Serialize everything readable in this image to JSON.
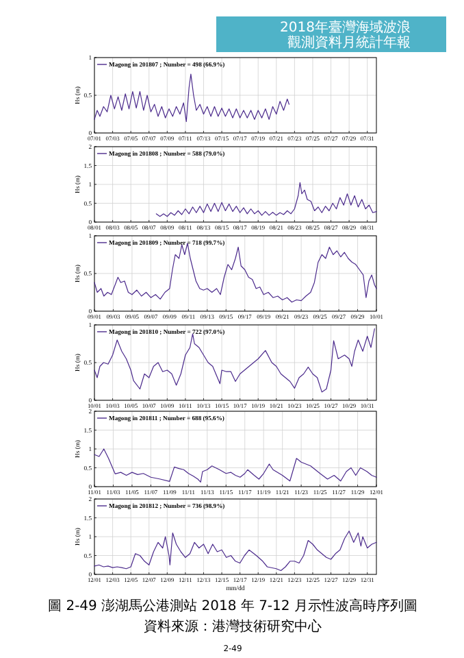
{
  "chart_data": [
    {
      "type": "line",
      "ylabel": "Hs (m)",
      "grid": true,
      "legend": "top left",
      "xlim": [
        "2018-07-01",
        "2018-08-01"
      ],
      "ylim": [
        0,
        1
      ],
      "yticks": [
        0,
        0.5,
        1
      ],
      "xticks": [
        {
          "value": "2018-07-01",
          "label": "07/01"
        },
        {
          "value": "2018-07-03",
          "label": "07/03"
        },
        {
          "value": "2018-07-05",
          "label": "07/05"
        },
        {
          "value": "2018-07-07",
          "label": "07/07"
        },
        {
          "value": "2018-07-09",
          "label": "07/09"
        },
        {
          "value": "2018-07-11",
          "label": "07/11"
        },
        {
          "value": "2018-07-13",
          "label": "07/13"
        },
        {
          "value": "2018-07-15",
          "label": "07/15"
        },
        {
          "value": "2018-07-17",
          "label": "07/17"
        },
        {
          "value": "2018-07-19",
          "label": "07/19"
        },
        {
          "value": "2018-07-21",
          "label": "07/21"
        },
        {
          "value": "2018-07-23",
          "label": "07/23"
        },
        {
          "value": "2018-07-25",
          "label": "07/25"
        },
        {
          "value": "2018-07-27",
          "label": "07/27"
        },
        {
          "value": "2018-07-29",
          "label": "07/29"
        },
        {
          "value": "2018-07-31",
          "label": "07/31"
        }
      ],
      "annotations": [
        "2018年臺灣海域波浪",
        "觀測資料月統計年報"
      ],
      "series": [
        {
          "name": "Magong in 201807 ; Number = 498 (66.9%)",
          "color": "#4b2a8c",
          "x": [
            "2018-07-01T00:00",
            "2018-07-01T07:12",
            "2018-07-01T14:24",
            "2018-07-02T00:00",
            "2018-07-02T09:36",
            "2018-07-02T19:12",
            "2018-07-03T04:48",
            "2018-07-03T14:24",
            "2018-07-04T00:00",
            "2018-07-04T09:36",
            "2018-07-04T19:12",
            "2018-07-05T04:48",
            "2018-07-05T14:24",
            "2018-07-06T00:00",
            "2018-07-06T09:36",
            "2018-07-06T19:12",
            "2018-07-07T04:48",
            "2018-07-07T14:24",
            "2018-07-08T00:00",
            "2018-07-08T09:36",
            "2018-07-08T19:12",
            "2018-07-09T04:48",
            "2018-07-09T14:24",
            "2018-07-10T00:00",
            "2018-07-10T09:36",
            "2018-07-10T19:12",
            "2018-07-11T02:24",
            "2018-07-11T09:36",
            "2018-07-11T14:24",
            "2018-07-11T21:36",
            "2018-07-12T04:48",
            "2018-07-12T14:24",
            "2018-07-13T00:00",
            "2018-07-13T09:36",
            "2018-07-13T19:12",
            "2018-07-14T04:48",
            "2018-07-14T14:24",
            "2018-07-15T00:00",
            "2018-07-15T09:36",
            "2018-07-15T19:12",
            "2018-07-16T04:48",
            "2018-07-16T14:24",
            "2018-07-17T00:00",
            "2018-07-17T09:36",
            "2018-07-17T19:12",
            "2018-07-18T04:48",
            "2018-07-18T14:24",
            "2018-07-19T00:00",
            "2018-07-19T09:36",
            "2018-07-19T19:12",
            "2018-07-20T04:48",
            "2018-07-20T14:24",
            "2018-07-21T00:00",
            "2018-07-21T09:36",
            "2018-07-21T19:12",
            "2018-07-22T04:48",
            "2018-07-22T09:36"
          ],
          "values": [
            0.18,
            0.3,
            0.22,
            0.35,
            0.28,
            0.5,
            0.32,
            0.48,
            0.3,
            0.52,
            0.32,
            0.55,
            0.33,
            0.55,
            0.3,
            0.5,
            0.28,
            0.38,
            0.22,
            0.35,
            0.2,
            0.32,
            0.22,
            0.35,
            0.25,
            0.4,
            0.15,
            0.6,
            0.78,
            0.5,
            0.3,
            0.38,
            0.25,
            0.35,
            0.22,
            0.35,
            0.22,
            0.33,
            0.22,
            0.32,
            0.2,
            0.32,
            0.2,
            0.3,
            0.2,
            0.3,
            0.18,
            0.3,
            0.2,
            0.32,
            0.18,
            0.35,
            0.25,
            0.42,
            0.3,
            0.45,
            0.38
          ]
        }
      ]
    },
    {
      "type": "line",
      "ylabel": "Hs (m)",
      "grid": true,
      "legend": "top left",
      "xlim": [
        "2018-08-01",
        "2018-09-01"
      ],
      "ylim": [
        0,
        2
      ],
      "yticks": [
        0,
        0.5,
        1,
        1.5,
        2
      ],
      "xticks": [
        {
          "value": "2018-08-01",
          "label": "08/01"
        },
        {
          "value": "2018-08-03",
          "label": "08/03"
        },
        {
          "value": "2018-08-05",
          "label": "08/05"
        },
        {
          "value": "2018-08-07",
          "label": "08/07"
        },
        {
          "value": "2018-08-09",
          "label": "08/09"
        },
        {
          "value": "2018-08-11",
          "label": "08/11"
        },
        {
          "value": "2018-08-13",
          "label": "08/13"
        },
        {
          "value": "2018-08-15",
          "label": "08/15"
        },
        {
          "value": "2018-08-17",
          "label": "08/17"
        },
        {
          "value": "2018-08-19",
          "label": "08/19"
        },
        {
          "value": "2018-08-21",
          "label": "08/21"
        },
        {
          "value": "2018-08-23",
          "label": "08/23"
        },
        {
          "value": "2018-08-25",
          "label": "08/25"
        },
        {
          "value": "2018-08-27",
          "label": "08/27"
        },
        {
          "value": "2018-08-29",
          "label": "08/29"
        },
        {
          "value": "2018-08-31",
          "label": "08/31"
        }
      ],
      "series": [
        {
          "name": "Magong in 201808 ; Number = 588 (79.0%)",
          "color": "#4b2a8c",
          "x": [
            "2018-08-07T19:12",
            "2018-08-08T04:48",
            "2018-08-08T14:24",
            "2018-08-09T00:00",
            "2018-08-09T09:36",
            "2018-08-09T19:12",
            "2018-08-10T04:48",
            "2018-08-10T14:24",
            "2018-08-11T00:00",
            "2018-08-11T09:36",
            "2018-08-11T19:12",
            "2018-08-12T04:48",
            "2018-08-12T14:24",
            "2018-08-13T00:00",
            "2018-08-13T09:36",
            "2018-08-13T19:12",
            "2018-08-14T04:48",
            "2018-08-14T14:24",
            "2018-08-15T00:00",
            "2018-08-15T09:36",
            "2018-08-15T19:12",
            "2018-08-16T04:48",
            "2018-08-16T14:24",
            "2018-08-17T00:00",
            "2018-08-17T09:36",
            "2018-08-17T19:12",
            "2018-08-18T04:48",
            "2018-08-18T14:24",
            "2018-08-19T00:00",
            "2018-08-19T09:36",
            "2018-08-19T19:12",
            "2018-08-20T04:48",
            "2018-08-20T14:24",
            "2018-08-21T00:00",
            "2018-08-21T09:36",
            "2018-08-21T19:12",
            "2018-08-22T04:48",
            "2018-08-22T14:24",
            "2018-08-23T00:00",
            "2018-08-23T09:36",
            "2018-08-23T14:24",
            "2018-08-23T19:12",
            "2018-08-24T02:24",
            "2018-08-24T09:36",
            "2018-08-24T19:12",
            "2018-08-25T04:48",
            "2018-08-25T14:24",
            "2018-08-26T00:00",
            "2018-08-26T09:36",
            "2018-08-26T19:12",
            "2018-08-27T04:48",
            "2018-08-27T14:24",
            "2018-08-28T00:00",
            "2018-08-28T09:36",
            "2018-08-28T19:12",
            "2018-08-29T04:48",
            "2018-08-29T14:24",
            "2018-08-30T00:00",
            "2018-08-30T09:36",
            "2018-08-30T19:12",
            "2018-08-31T04:48",
            "2018-08-31T14:24",
            "2018-09-01T00:00"
          ],
          "values": [
            0.22,
            0.15,
            0.22,
            0.15,
            0.25,
            0.18,
            0.3,
            0.2,
            0.35,
            0.22,
            0.4,
            0.25,
            0.42,
            0.25,
            0.48,
            0.28,
            0.5,
            0.28,
            0.52,
            0.3,
            0.48,
            0.28,
            0.42,
            0.25,
            0.38,
            0.22,
            0.35,
            0.22,
            0.3,
            0.18,
            0.28,
            0.18,
            0.26,
            0.18,
            0.25,
            0.2,
            0.3,
            0.22,
            0.35,
            0.7,
            1.05,
            0.75,
            0.85,
            0.6,
            0.55,
            0.3,
            0.4,
            0.25,
            0.42,
            0.3,
            0.5,
            0.35,
            0.65,
            0.45,
            0.75,
            0.45,
            0.7,
            0.4,
            0.6,
            0.35,
            0.45,
            0.25,
            0.28
          ]
        }
      ]
    },
    {
      "type": "line",
      "ylabel": "Hs (m)",
      "grid": true,
      "legend": "top left",
      "xlim": [
        "2018-09-01",
        "2018-10-01"
      ],
      "ylim": [
        0,
        1
      ],
      "yticks": [
        0,
        0.5,
        1
      ],
      "xticks": [
        {
          "value": "2018-09-01",
          "label": "09/01"
        },
        {
          "value": "2018-09-03",
          "label": "09/03"
        },
        {
          "value": "2018-09-05",
          "label": "09/05"
        },
        {
          "value": "2018-09-07",
          "label": "09/07"
        },
        {
          "value": "2018-09-09",
          "label": "09/09"
        },
        {
          "value": "2018-09-11",
          "label": "09/11"
        },
        {
          "value": "2018-09-13",
          "label": "09/13"
        },
        {
          "value": "2018-09-15",
          "label": "09/15"
        },
        {
          "value": "2018-09-17",
          "label": "09/17"
        },
        {
          "value": "2018-09-19",
          "label": "09/19"
        },
        {
          "value": "2018-09-21",
          "label": "09/21"
        },
        {
          "value": "2018-09-23",
          "label": "09/23"
        },
        {
          "value": "2018-09-25",
          "label": "09/25"
        },
        {
          "value": "2018-09-27",
          "label": "09/27"
        },
        {
          "value": "2018-09-29",
          "label": "09/29"
        },
        {
          "value": "2018-10-01",
          "label": "10/01"
        }
      ],
      "series": [
        {
          "name": "Magong in 201809 ; Number = 718 (99.7%)",
          "color": "#4b2a8c",
          "x": [
            "2018-09-01T00:00",
            "2018-09-01T07:12",
            "2018-09-01T16:48",
            "2018-09-02T00:00",
            "2018-09-02T09:36",
            "2018-09-02T19:12",
            "2018-09-03T04:48",
            "2018-09-03T12:00",
            "2018-09-03T19:12",
            "2018-09-04T04:48",
            "2018-09-04T14:24",
            "2018-09-05T00:00",
            "2018-09-05T12:00",
            "2018-09-06T00:00",
            "2018-09-06T12:00",
            "2018-09-07T00:00",
            "2018-09-07T12:00",
            "2018-09-08T00:00",
            "2018-09-08T12:00",
            "2018-09-09T00:00",
            "2018-09-09T07:12",
            "2018-09-09T14:24",
            "2018-09-10T00:00",
            "2018-09-10T07:12",
            "2018-09-10T14:24",
            "2018-09-10T21:36",
            "2018-09-11T04:48",
            "2018-09-11T12:00",
            "2018-09-11T19:12",
            "2018-09-12T04:48",
            "2018-09-12T14:24",
            "2018-09-13T00:00",
            "2018-09-13T12:00",
            "2018-09-14T00:00",
            "2018-09-14T09:36",
            "2018-09-14T19:12",
            "2018-09-15T04:48",
            "2018-09-15T14:24",
            "2018-09-16T00:00",
            "2018-09-16T07:12",
            "2018-09-16T14:24",
            "2018-09-17T00:00",
            "2018-09-17T09:36",
            "2018-09-17T19:12",
            "2018-09-18T04:48",
            "2018-09-18T14:24",
            "2018-09-19T00:00",
            "2018-09-19T12:00",
            "2018-09-20T00:00",
            "2018-09-20T12:00",
            "2018-09-21T00:00",
            "2018-09-21T12:00",
            "2018-09-22T00:00",
            "2018-09-22T12:00",
            "2018-09-23T00:00",
            "2018-09-23T12:00",
            "2018-09-24T00:00",
            "2018-09-24T09:36",
            "2018-09-24T19:12",
            "2018-09-25T04:48",
            "2018-09-25T14:24",
            "2018-09-26T00:00",
            "2018-09-26T09:36",
            "2018-09-26T19:12",
            "2018-09-27T04:48",
            "2018-09-27T14:24",
            "2018-09-28T00:00",
            "2018-09-28T09:36",
            "2018-09-28T19:12",
            "2018-09-29T04:48",
            "2018-09-29T14:24",
            "2018-09-29T21:36",
            "2018-09-30T04:48",
            "2018-09-30T12:00",
            "2018-09-30T19:12",
            "2018-10-01T00:00"
          ],
          "values": [
            0.38,
            0.25,
            0.3,
            0.2,
            0.25,
            0.22,
            0.35,
            0.45,
            0.38,
            0.4,
            0.25,
            0.22,
            0.28,
            0.2,
            0.25,
            0.18,
            0.22,
            0.16,
            0.25,
            0.3,
            0.55,
            0.75,
            0.7,
            0.88,
            0.75,
            0.9,
            0.7,
            0.55,
            0.4,
            0.3,
            0.28,
            0.3,
            0.25,
            0.3,
            0.22,
            0.45,
            0.62,
            0.55,
            0.7,
            0.85,
            0.6,
            0.55,
            0.45,
            0.42,
            0.3,
            0.32,
            0.22,
            0.25,
            0.18,
            0.2,
            0.15,
            0.18,
            0.12,
            0.15,
            0.14,
            0.2,
            0.25,
            0.38,
            0.65,
            0.75,
            0.7,
            0.85,
            0.75,
            0.8,
            0.72,
            0.78,
            0.7,
            0.65,
            0.62,
            0.55,
            0.48,
            0.18,
            0.4,
            0.48,
            0.35,
            0.3
          ]
        }
      ]
    },
    {
      "type": "line",
      "ylabel": "Hs (m)",
      "grid": true,
      "legend": "top left",
      "xlim": [
        "2018-10-01",
        "2018-11-01"
      ],
      "ylim": [
        0,
        1
      ],
      "yticks": [
        0,
        0.5,
        1
      ],
      "xticks": [
        {
          "value": "2018-10-01",
          "label": "10/01"
        },
        {
          "value": "2018-10-03",
          "label": "10/03"
        },
        {
          "value": "2018-10-05",
          "label": "10/05"
        },
        {
          "value": "2018-10-07",
          "label": "10/07"
        },
        {
          "value": "2018-10-09",
          "label": "10/09"
        },
        {
          "value": "2018-10-11",
          "label": "10/11"
        },
        {
          "value": "2018-10-13",
          "label": "10/13"
        },
        {
          "value": "2018-10-15",
          "label": "10/15"
        },
        {
          "value": "2018-10-17",
          "label": "10/17"
        },
        {
          "value": "2018-10-19",
          "label": "10/19"
        },
        {
          "value": "2018-10-21",
          "label": "10/21"
        },
        {
          "value": "2018-10-23",
          "label": "10/23"
        },
        {
          "value": "2018-10-25",
          "label": "10/25"
        },
        {
          "value": "2018-10-27",
          "label": "10/27"
        },
        {
          "value": "2018-10-29",
          "label": "10/29"
        },
        {
          "value": "2018-10-31",
          "label": "10/31"
        }
      ],
      "series": [
        {
          "name": "Magong in 201810 ; Number = 722 (97.0%)",
          "color": "#4b2a8c",
          "x": [
            "2018-10-01T00:00",
            "2018-10-01T07:12",
            "2018-10-01T14:24",
            "2018-10-02T00:00",
            "2018-10-02T12:00",
            "2018-10-03T00:00",
            "2018-10-03T12:00",
            "2018-10-04T00:00",
            "2018-10-04T12:00",
            "2018-10-05T00:00",
            "2018-10-05T07:12",
            "2018-10-06T00:00",
            "2018-10-06T12:00",
            "2018-10-07T00:00",
            "2018-10-07T12:00",
            "2018-10-08T00:00",
            "2018-10-08T12:00",
            "2018-10-09T00:00",
            "2018-10-09T12:00",
            "2018-10-10T00:00",
            "2018-10-10T12:00",
            "2018-10-11T00:00",
            "2018-10-11T12:00",
            "2018-10-11T19:12",
            "2018-10-12T00:00",
            "2018-10-12T12:00",
            "2018-10-13T00:00",
            "2018-10-13T12:00",
            "2018-10-14T00:00",
            "2018-10-14T19:12",
            "2018-10-15T00:00",
            "2018-10-15T12:00",
            "2018-10-16T00:00",
            "2018-10-16T12:00",
            "2018-10-17T00:00",
            "2018-10-17T12:00",
            "2018-10-18T00:00",
            "2018-10-18T12:00",
            "2018-10-19T00:00",
            "2018-10-19T19:12",
            "2018-10-20T12:00",
            "2018-10-21T00:00",
            "2018-10-21T12:00",
            "2018-10-22T00:00",
            "2018-10-22T12:00",
            "2018-10-23T00:00",
            "2018-10-23T12:00",
            "2018-10-24T00:00",
            "2018-10-24T12:00",
            "2018-10-25T00:00",
            "2018-10-25T12:00",
            "2018-10-26T00:00",
            "2018-10-26T12:00",
            "2018-10-27T00:00",
            "2018-10-27T07:12",
            "2018-10-27T19:12",
            "2018-10-28T12:00",
            "2018-10-29T00:00",
            "2018-10-29T07:12",
            "2018-10-29T14:24",
            "2018-10-30T00:00",
            "2018-10-30T12:00",
            "2018-10-31T00:00",
            "2018-10-31T09:36",
            "2018-10-31T19:12"
          ],
          "values": [
            0.4,
            0.3,
            0.45,
            0.5,
            0.48,
            0.6,
            0.8,
            0.65,
            0.55,
            0.4,
            0.26,
            0.15,
            0.35,
            0.3,
            0.45,
            0.5,
            0.38,
            0.4,
            0.35,
            0.2,
            0.35,
            0.6,
            0.7,
            0.88,
            0.75,
            0.7,
            0.6,
            0.5,
            0.45,
            0.22,
            0.4,
            0.38,
            0.38,
            0.25,
            0.35,
            0.4,
            0.45,
            0.5,
            0.55,
            0.66,
            0.5,
            0.45,
            0.35,
            0.3,
            0.25,
            0.16,
            0.3,
            0.35,
            0.44,
            0.35,
            0.3,
            0.11,
            0.15,
            0.4,
            0.79,
            0.55,
            0.6,
            0.55,
            0.45,
            0.65,
            0.8,
            0.65,
            0.85,
            0.7,
            0.95
          ]
        }
      ]
    },
    {
      "type": "line",
      "ylabel": "Hs (m)",
      "grid": true,
      "legend": "top left",
      "xlim": [
        "2018-11-01",
        "2018-12-01"
      ],
      "ylim": [
        0,
        2
      ],
      "yticks": [
        0,
        0.5,
        1,
        1.5,
        2
      ],
      "xticks": [
        {
          "value": "2018-11-01",
          "label": "11/01"
        },
        {
          "value": "2018-11-03",
          "label": "11/03"
        },
        {
          "value": "2018-11-05",
          "label": "11/05"
        },
        {
          "value": "2018-11-07",
          "label": "11/07"
        },
        {
          "value": "2018-11-09",
          "label": "11/09"
        },
        {
          "value": "2018-11-11",
          "label": "11/11"
        },
        {
          "value": "2018-11-13",
          "label": "11/13"
        },
        {
          "value": "2018-11-15",
          "label": "11/15"
        },
        {
          "value": "2018-11-17",
          "label": "11/17"
        },
        {
          "value": "2018-11-19",
          "label": "11/19"
        },
        {
          "value": "2018-11-21",
          "label": "11/21"
        },
        {
          "value": "2018-11-23",
          "label": "11/23"
        },
        {
          "value": "2018-11-25",
          "label": "11/25"
        },
        {
          "value": "2018-11-27",
          "label": "11/27"
        },
        {
          "value": "2018-11-29",
          "label": "11/29"
        },
        {
          "value": "2018-12-01",
          "label": "12/01"
        }
      ],
      "series": [
        {
          "name": "Magong in 201811 ; Number = 688 (95.6%)",
          "color": "#4b2a8c",
          "x": [
            "2018-11-01T00:00",
            "2018-11-01T12:00",
            "2018-11-02T00:00",
            "2018-11-02T12:00",
            "2018-11-03T04:48",
            "2018-11-03T19:12",
            "2018-11-04T09:36",
            "2018-11-05T00:00",
            "2018-11-05T14:24",
            "2018-11-06T04:48",
            "2018-11-07T00:00",
            "2018-11-08T00:00",
            "2018-11-09T00:00",
            "2018-11-09T12:00",
            "2018-11-10T00:00",
            "2018-11-10T12:00",
            "2018-11-11T00:00",
            "2018-11-11T12:00",
            "2018-11-12T00:00",
            "2018-11-12T07:12",
            "2018-11-12T12:00",
            "2018-11-13T00:00",
            "2018-11-13T12:00",
            "2018-11-14T07:12",
            "2018-11-15T00:00",
            "2018-11-15T12:00",
            "2018-11-16T00:00",
            "2018-11-16T12:00",
            "2018-11-17T00:00",
            "2018-11-17T07:12",
            "2018-11-18T00:00",
            "2018-11-18T12:00",
            "2018-11-19T00:00",
            "2018-11-19T14:24",
            "2018-11-20T00:00",
            "2018-11-21T00:00",
            "2018-11-21T19:12",
            "2018-11-22T12:00",
            "2018-11-23T00:00",
            "2018-11-24T00:00",
            "2018-11-25T00:00",
            "2018-11-25T19:12",
            "2018-11-26T12:00",
            "2018-11-27T04:48",
            "2018-11-27T19:12",
            "2018-11-28T07:12",
            "2018-11-28T19:12",
            "2018-11-29T07:12",
            "2018-11-30T00:00",
            "2018-11-30T12:00",
            "2018-12-01T00:00"
          ],
          "values": [
            0.85,
            0.8,
            1.0,
            0.75,
            0.34,
            0.38,
            0.3,
            0.38,
            0.32,
            0.35,
            0.25,
            0.2,
            0.14,
            0.52,
            0.48,
            0.45,
            0.35,
            0.28,
            0.2,
            0.12,
            0.4,
            0.45,
            0.55,
            0.45,
            0.35,
            0.38,
            0.3,
            0.25,
            0.35,
            0.45,
            0.3,
            0.2,
            0.35,
            0.6,
            0.45,
            0.3,
            0.15,
            0.75,
            0.65,
            0.55,
            0.35,
            0.2,
            0.3,
            0.15,
            0.4,
            0.5,
            0.3,
            0.5,
            0.4,
            0.3,
            0.25
          ]
        }
      ]
    },
    {
      "type": "line",
      "ylabel": "Hs (m)",
      "xlabel": "mm/dd",
      "grid": true,
      "legend": "top left",
      "xlim": [
        "2018-12-01",
        "2019-01-01"
      ],
      "ylim": [
        0,
        2
      ],
      "yticks": [
        0,
        0.5,
        1,
        1.5,
        2
      ],
      "xticks": [
        {
          "value": "2018-12-01",
          "label": "12/01"
        },
        {
          "value": "2018-12-03",
          "label": "12/03"
        },
        {
          "value": "2018-12-05",
          "label": "12/05"
        },
        {
          "value": "2018-12-07",
          "label": "12/07"
        },
        {
          "value": "2018-12-09",
          "label": "12/09"
        },
        {
          "value": "2018-12-11",
          "label": "12/11"
        },
        {
          "value": "2018-12-13",
          "label": "12/13"
        },
        {
          "value": "2018-12-15",
          "label": "12/15"
        },
        {
          "value": "2018-12-17",
          "label": "12/17"
        },
        {
          "value": "2018-12-19",
          "label": "12/19"
        },
        {
          "value": "2018-12-21",
          "label": "12/21"
        },
        {
          "value": "2018-12-23",
          "label": "12/23"
        },
        {
          "value": "2018-12-25",
          "label": "12/25"
        },
        {
          "value": "2018-12-27",
          "label": "12/27"
        },
        {
          "value": "2018-12-29",
          "label": "12/29"
        },
        {
          "value": "2018-12-31",
          "label": "12/31"
        }
      ],
      "annotations": [
        "圖 2-49 澎湖馬公港測站 2018 年 7-12 月示性波高時序列圖",
        "資料來源：港灣技術研究中心",
        "2-49"
      ],
      "series": [
        {
          "name": "Magong in 201812 ; Number = 736 (98.9%)",
          "color": "#4b2a8c",
          "x": [
            "2018-12-01T00:00",
            "2018-12-01T12:00",
            "2018-12-02T00:00",
            "2018-12-02T12:00",
            "2018-12-03T00:00",
            "2018-12-03T12:00",
            "2018-12-04T00:00",
            "2018-12-04T12:00",
            "2018-12-05T00:00",
            "2018-12-05T12:00",
            "2018-12-06T00:00",
            "2018-12-06T12:00",
            "2018-12-07T00:00",
            "2018-12-07T12:00",
            "2018-12-08T00:00",
            "2018-12-08T12:00",
            "2018-12-08T19:12",
            "2018-12-09T04:48",
            "2018-12-09T07:12",
            "2018-12-09T14:24",
            "2018-12-10T00:00",
            "2018-12-10T12:00",
            "2018-12-11T00:00",
            "2018-12-11T12:00",
            "2018-12-12T00:00",
            "2018-12-12T12:00",
            "2018-12-13T00:00",
            "2018-12-13T12:00",
            "2018-12-14T00:00",
            "2018-12-14T12:00",
            "2018-12-15T00:00",
            "2018-12-15T12:00",
            "2018-12-16T00:00",
            "2018-12-16T12:00",
            "2018-12-17T00:00",
            "2018-12-17T12:00",
            "2018-12-18T00:00",
            "2018-12-18T19:12",
            "2018-12-19T12:00",
            "2018-12-20T00:00",
            "2018-12-21T00:00",
            "2018-12-21T12:00",
            "2018-12-22T00:00",
            "2018-12-22T12:00",
            "2018-12-23T00:00",
            "2018-12-23T12:00",
            "2018-12-24T00:00",
            "2018-12-24T12:00",
            "2018-12-25T00:00",
            "2018-12-25T12:00",
            "2018-12-26T00:00",
            "2018-12-26T12:00",
            "2018-12-27T00:00",
            "2018-12-27T12:00",
            "2018-12-28T00:00",
            "2018-12-28T12:00",
            "2018-12-29T00:00",
            "2018-12-29T12:00",
            "2018-12-30T00:00",
            "2018-12-30T07:12",
            "2018-12-30T12:00",
            "2018-12-31T00:00",
            "2018-12-31T12:00",
            "2019-01-01T00:00"
          ],
          "values": [
            0.22,
            0.25,
            0.2,
            0.22,
            0.18,
            0.2,
            0.18,
            0.15,
            0.2,
            0.55,
            0.5,
            0.35,
            0.25,
            0.6,
            0.85,
            0.7,
            1.0,
            0.5,
            0.25,
            1.1,
            0.8,
            0.6,
            0.45,
            0.55,
            0.85,
            0.7,
            0.8,
            0.55,
            0.8,
            0.6,
            0.65,
            0.45,
            0.5,
            0.35,
            0.3,
            0.5,
            0.65,
            0.5,
            0.35,
            0.2,
            0.15,
            0.1,
            0.2,
            0.35,
            0.35,
            0.3,
            0.5,
            0.9,
            0.8,
            0.65,
            0.55,
            0.45,
            0.4,
            0.55,
            0.65,
            0.95,
            1.15,
            0.85,
            1.1,
            0.75,
            1.0,
            0.7,
            0.8,
            0.85
          ]
        }
      ]
    }
  ]
}
